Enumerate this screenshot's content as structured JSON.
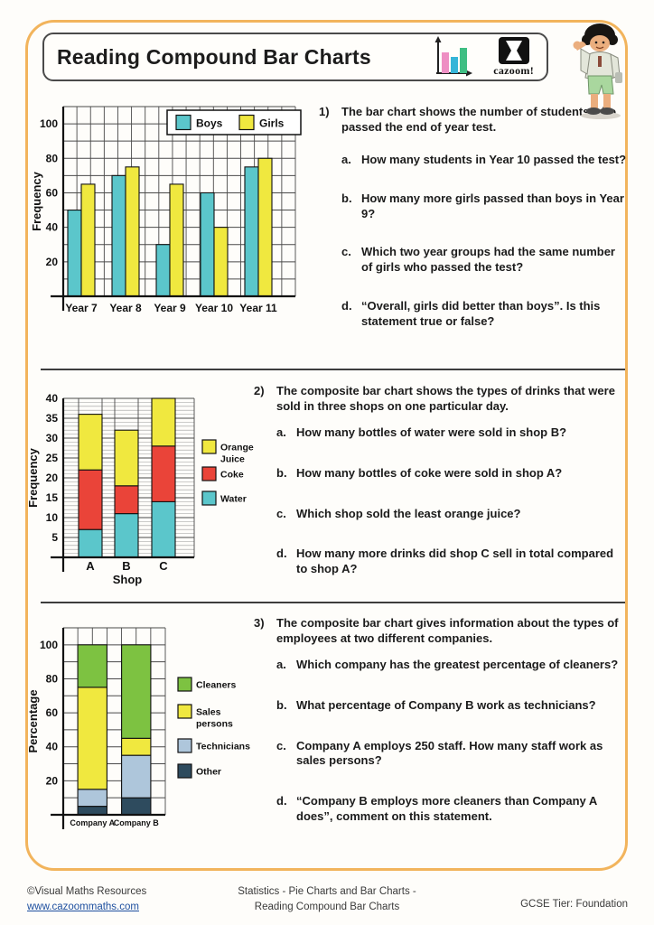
{
  "header": {
    "title": "Reading Compound Bar Charts",
    "brand": "cazoom!",
    "icon_colors": {
      "pink": "#EE8FC3",
      "blue": "#35B5D8",
      "green": "#3FBE83"
    },
    "accent_border_color": "#F2B45C"
  },
  "questions": [
    {
      "number": "1)",
      "intro": "The bar chart shows the number of students who passed the end of year test.",
      "parts": [
        {
          "label": "a.",
          "text": "How many students in Year 10 passed the test?"
        },
        {
          "label": "b.",
          "text": "How many more girls passed than boys in Year 9?"
        },
        {
          "label": "c.",
          "text": "Which two year groups had the same number of girls who passed the test?"
        },
        {
          "label": "d.",
          "text": "“Overall, girls did better than boys”. Is this statement true or false?"
        }
      ]
    },
    {
      "number": "2)",
      "intro": "The composite bar chart shows the types of drinks that were sold in three shops on one particular day.",
      "parts": [
        {
          "label": "a.",
          "text": "How many bottles of water were sold in shop B?"
        },
        {
          "label": "b.",
          "text": "How many bottles of coke were sold in shop A?"
        },
        {
          "label": "c.",
          "text": "Which shop sold the least orange juice?"
        },
        {
          "label": "d.",
          "text": "How many more drinks did shop C sell in total compared to shop A?"
        }
      ]
    },
    {
      "number": "3)",
      "intro": "The composite bar chart gives information about the types of employees at two different companies.",
      "parts": [
        {
          "label": "a.",
          "text": "Which company has the greatest percentage of cleaners?"
        },
        {
          "label": "b.",
          "text": "What percentage of Company B work as technicians?"
        },
        {
          "label": "c.",
          "text": "Company A employs 250 staff. How many staff work as sales persons?"
        },
        {
          "label": "d.",
          "text": "“Company B employs more cleaners than Company A does”, comment on this statement."
        }
      ]
    }
  ],
  "chart_data": [
    {
      "type": "bar",
      "variant": "grouped",
      "ylabel": "Frequency",
      "categories": [
        "Year 7",
        "Year 8",
        "Year 9",
        "Year 10",
        "Year 11"
      ],
      "series": [
        {
          "name": "Boys",
          "color": "#5BC6CB",
          "values": [
            50,
            70,
            30,
            60,
            75
          ]
        },
        {
          "name": "Girls",
          "color": "#F0E83F",
          "values": [
            65,
            75,
            65,
            40,
            80
          ]
        }
      ],
      "ylim": [
        0,
        110
      ],
      "grid_step": 10,
      "major_step": 10,
      "label_step": 20,
      "grid": true,
      "legend_position": "top-right-inside"
    },
    {
      "type": "bar",
      "variant": "stacked",
      "ylabel": "Frequency",
      "xlabel": "Shop",
      "categories": [
        "A",
        "B",
        "C"
      ],
      "series": [
        {
          "name": "Water",
          "color": "#5BC6CB",
          "values": [
            7,
            11,
            14
          ]
        },
        {
          "name": "Coke",
          "color": "#EA4439",
          "values": [
            15,
            7,
            14
          ]
        },
        {
          "name": "Orange\nJuice",
          "color": "#F0E83F",
          "values": [
            14,
            14,
            12
          ]
        }
      ],
      "stack_totals": [
        36,
        32,
        40
      ],
      "ylim": [
        0,
        40
      ],
      "grid_step": 1,
      "major_step": 5,
      "label_step": 5,
      "grid": true,
      "legend_position": "right"
    },
    {
      "type": "bar",
      "variant": "stacked",
      "ylabel": "Percentage",
      "categories": [
        "Company A",
        "Company B"
      ],
      "series": [
        {
          "name": "Other",
          "color": "#2E4B5E",
          "values": [
            5,
            10
          ]
        },
        {
          "name": "Technicians",
          "color": "#AEC6DB",
          "values": [
            10,
            25
          ]
        },
        {
          "name": "Sales\npersons",
          "color": "#F0E83F",
          "values": [
            60,
            10
          ]
        },
        {
          "name": "Cleaners",
          "color": "#7DC241",
          "values": [
            25,
            55
          ]
        }
      ],
      "ylim": [
        0,
        110
      ],
      "grid_step": 10,
      "major_step": 10,
      "label_step": 20,
      "grid": true,
      "legend_position": "right"
    }
  ],
  "footer": {
    "copyright": "©Visual Maths Resources",
    "website": "www.cazoommaths.com",
    "center_line1": "Statistics - Pie Charts and Bar Charts -",
    "center_line2": "Reading Compound Bar Charts",
    "tier": "GCSE Tier: Foundation"
  }
}
